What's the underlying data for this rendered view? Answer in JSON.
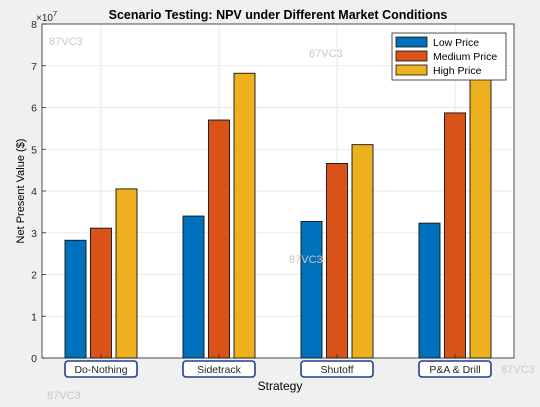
{
  "chart_data": {
    "type": "bar",
    "title": "Scenario Testing: NPV under Different Market Conditions",
    "xlabel": "Strategy",
    "ylabel": "Net Present Value ($)",
    "y_exponent_label": "×10",
    "y_exponent_power": "7",
    "y_scale": 10000000,
    "ylim": [
      0,
      8
    ],
    "yticks": [
      "0",
      "1",
      "2",
      "3",
      "4",
      "5",
      "6",
      "7",
      "8"
    ],
    "grid": true,
    "legend_position": "top-right",
    "categories": [
      "Do-Nothing",
      "Sidetrack",
      "Shutoff",
      "P&A & Drill"
    ],
    "series": [
      {
        "name": "Low Price",
        "color": "#0072bd",
        "values": [
          2.82,
          3.4,
          3.27,
          3.23
        ]
      },
      {
        "name": "Medium Price",
        "color": "#d95319",
        "values": [
          3.11,
          5.7,
          4.66,
          5.87
        ]
      },
      {
        "name": "High Price",
        "color": "#edb120",
        "values": [
          4.05,
          6.82,
          5.11,
          6.95
        ]
      }
    ],
    "category_box_color": "#1f3f8f"
  },
  "watermarks": [
    "87VC3",
    "87VC3",
    "87VC3",
    "87VC3",
    "87VC3"
  ]
}
